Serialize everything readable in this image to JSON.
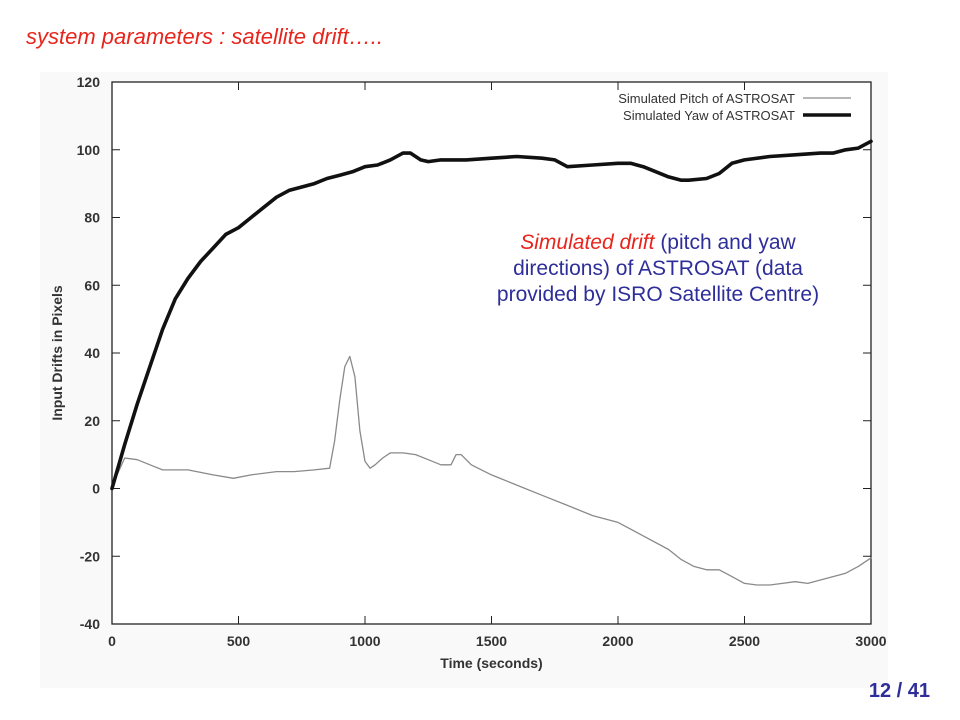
{
  "slide": {
    "title": "system parameters : satellite drift…..",
    "page_number": "12 / 41",
    "annotation": {
      "emphasis": "Simulated drift",
      "rest": " (pitch and yaw directions) of ASTROSAT (data provided by ISRO Satellite Centre)"
    }
  },
  "colors": {
    "title": "#e8251c",
    "annotation_text": "#2e2e9a",
    "page_number": "#2e2e9a",
    "pitch_line": "#8a8a8a",
    "yaw_line": "#111111"
  },
  "chart_data": {
    "type": "line",
    "title": "",
    "xlabel": "Time (seconds)",
    "ylabel": "Input Drifts in Pixels",
    "xlim": [
      0,
      3000
    ],
    "ylim": [
      -40,
      120
    ],
    "xticks": [
      0,
      500,
      1000,
      1500,
      2000,
      2500,
      3000
    ],
    "yticks": [
      -40,
      -20,
      0,
      20,
      40,
      60,
      80,
      100,
      120
    ],
    "grid": false,
    "legend_position": "top-right",
    "series": [
      {
        "name": "Simulated Pitch of ASTROSAT",
        "x": [
          0,
          20,
          50,
          100,
          150,
          200,
          300,
          400,
          480,
          550,
          650,
          720,
          800,
          860,
          880,
          900,
          920,
          940,
          960,
          980,
          1000,
          1020,
          1040,
          1070,
          1100,
          1150,
          1200,
          1250,
          1300,
          1340,
          1360,
          1380,
          1420,
          1500,
          1600,
          1700,
          1800,
          1900,
          2000,
          2100,
          2200,
          2250,
          2300,
          2350,
          2400,
          2450,
          2500,
          2550,
          2600,
          2650,
          2700,
          2750,
          2800,
          2900,
          2950,
          3000
        ],
        "y": [
          0,
          4,
          9,
          8.5,
          7,
          5.5,
          5.5,
          4,
          3,
          4,
          5,
          5,
          5.5,
          6,
          14,
          26,
          36,
          39,
          33,
          17,
          8,
          6,
          7,
          9,
          10.5,
          10.5,
          10,
          8.5,
          7,
          7,
          10,
          10,
          7,
          4,
          1,
          -2,
          -5,
          -8,
          -10,
          -14,
          -18,
          -21,
          -23,
          -24,
          -24,
          -26,
          -28,
          -28.5,
          -28.5,
          -28,
          -27.5,
          -28,
          -27,
          -25,
          -23,
          -20.5
        ]
      },
      {
        "name": "Simulated Yaw of ASTROSAT",
        "x": [
          0,
          50,
          100,
          150,
          200,
          250,
          300,
          350,
          400,
          450,
          500,
          550,
          600,
          650,
          700,
          750,
          800,
          850,
          900,
          950,
          1000,
          1050,
          1100,
          1150,
          1180,
          1220,
          1250,
          1300,
          1400,
          1500,
          1600,
          1700,
          1750,
          1800,
          1900,
          2000,
          2050,
          2100,
          2150,
          2200,
          2250,
          2280,
          2350,
          2400,
          2450,
          2500,
          2600,
          2700,
          2800,
          2850,
          2900,
          2950,
          3000
        ],
        "y": [
          0,
          13,
          25,
          36,
          47,
          56,
          62,
          67,
          71,
          75,
          77,
          80,
          83,
          86,
          88,
          89,
          90,
          91.5,
          92.5,
          93.5,
          95,
          95.5,
          97,
          99,
          99,
          97,
          96.5,
          97,
          97,
          97.5,
          98,
          97.5,
          97,
          95,
          95.5,
          96,
          96,
          95,
          93.5,
          92,
          91,
          91,
          91.5,
          93,
          96,
          97,
          98,
          98.5,
          99,
          99,
          100,
          100.5,
          102.5
        ]
      }
    ]
  }
}
